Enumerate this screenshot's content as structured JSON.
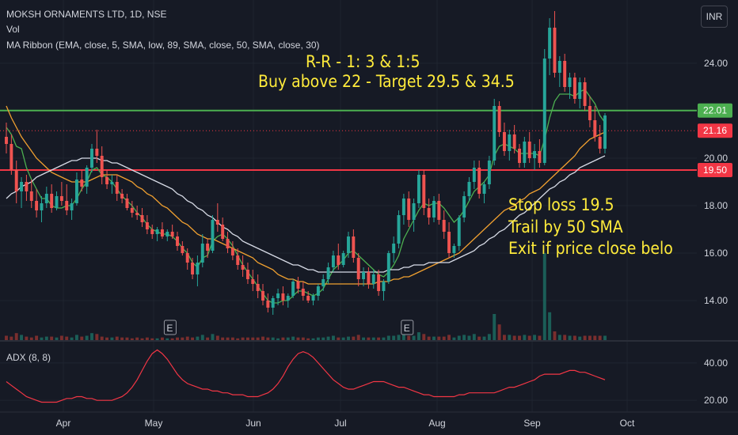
{
  "header": {
    "symbol_line": "MOKSH ORNAMENTS LTD, 1D, NSE",
    "vol_label": "Vol",
    "ma_ribbon_label": "MA Ribbon (EMA, close, 5, SMA, low, 89, SMA, close, 50, SMA, close, 30)",
    "currency": "INR"
  },
  "annotations": [
    "R-R - 1: 3 & 1:5",
    "Buy above 22 - Target 29.5 & 34.5",
    "Stop loss 19.5",
    "Trail by 50 SMA",
    "Exit if price close belo"
  ],
  "adx_label": "ADX (8, 8)",
  "earnings_marker": "E",
  "colors": {
    "background": "#161a25",
    "up": "#26a69a",
    "down": "#ef5350",
    "ema5": "#4caf50",
    "sma30": "#f0a030",
    "sma50": "#d7dbe6",
    "resistance_line": "#4caf50",
    "support_line": "#f23645",
    "annotation_text": "#ffeb3b",
    "adx_line": "#f23645"
  },
  "chart_data": {
    "type": "candlestick",
    "ylim": [
      12.8,
      26.6
    ],
    "y_ticks": [
      "24.00",
      "22.00",
      "20.00",
      "18.00",
      "16.00",
      "14.00"
    ],
    "price_labels": [
      {
        "value": 22.01,
        "text": "22.01",
        "color": "#4caf50"
      },
      {
        "value": 21.16,
        "text": "21.16",
        "color": "#f23645"
      },
      {
        "value": 19.5,
        "text": "19.50",
        "color": "#f23645"
      }
    ],
    "horizontal_lines": [
      {
        "value": 22.01,
        "color": "#4caf50",
        "style": "solid"
      },
      {
        "value": 21.16,
        "color": "#f23645",
        "style": "dotted"
      },
      {
        "value": 19.5,
        "color": "#f23645",
        "style": "solid"
      }
    ],
    "x_labels": [
      "Apr",
      "May",
      "Jun",
      "Jul",
      "Aug",
      "Sep",
      "Oct"
    ],
    "earnings_positions": [
      0.236,
      0.632
    ],
    "candles": [
      [
        20.9,
        21.5,
        20.2,
        20.6
      ],
      [
        20.6,
        21.0,
        19.3,
        19.5
      ],
      [
        19.5,
        19.9,
        18.1,
        18.6
      ],
      [
        18.6,
        19.2,
        17.9,
        19.0
      ],
      [
        19.0,
        19.3,
        18.2,
        18.6
      ],
      [
        18.6,
        19.1,
        17.9,
        18.2
      ],
      [
        18.2,
        18.7,
        17.5,
        17.8
      ],
      [
        17.8,
        18.4,
        17.3,
        18.1
      ],
      [
        18.1,
        18.8,
        17.9,
        18.5
      ],
      [
        18.5,
        18.9,
        17.7,
        17.9
      ],
      [
        17.9,
        18.6,
        17.8,
        18.4
      ],
      [
        18.4,
        19.0,
        18.0,
        18.2
      ],
      [
        18.2,
        18.9,
        17.6,
        17.8
      ],
      [
        17.8,
        18.3,
        17.4,
        18.1
      ],
      [
        18.1,
        19.4,
        18.0,
        19.1
      ],
      [
        19.1,
        19.5,
        18.6,
        18.8
      ],
      [
        18.8,
        19.7,
        18.5,
        19.6
      ],
      [
        19.6,
        20.6,
        19.4,
        20.4
      ],
      [
        20.4,
        21.2,
        19.8,
        20.1
      ],
      [
        20.1,
        20.5,
        18.9,
        19.2
      ],
      [
        19.2,
        19.5,
        18.7,
        18.9
      ],
      [
        18.9,
        19.3,
        18.5,
        19.0
      ],
      [
        19.0,
        19.3,
        18.2,
        18.5
      ],
      [
        18.5,
        18.7,
        18.1,
        18.3
      ],
      [
        18.3,
        18.5,
        17.8,
        17.9
      ],
      [
        17.9,
        18.2,
        17.5,
        17.7
      ],
      [
        17.7,
        18.0,
        17.4,
        17.6
      ],
      [
        17.6,
        17.9,
        17.1,
        17.3
      ],
      [
        17.3,
        17.6,
        16.8,
        17.0
      ],
      [
        17.0,
        17.2,
        16.6,
        16.8
      ],
      [
        16.8,
        17.1,
        16.5,
        17.0
      ],
      [
        17.0,
        17.3,
        16.6,
        16.7
      ],
      [
        16.7,
        17.0,
        16.5,
        16.9
      ],
      [
        16.9,
        17.2,
        16.6,
        16.7
      ],
      [
        16.7,
        16.9,
        16.1,
        16.3
      ],
      [
        16.3,
        16.5,
        15.9,
        16.0
      ],
      [
        16.0,
        16.2,
        15.3,
        15.6
      ],
      [
        15.6,
        15.8,
        14.9,
        15.1
      ],
      [
        15.1,
        15.9,
        14.6,
        15.6
      ],
      [
        15.6,
        16.8,
        15.4,
        16.4
      ],
      [
        16.4,
        16.6,
        15.8,
        16.1
      ],
      [
        16.1,
        17.6,
        16.0,
        17.4
      ],
      [
        17.4,
        18.1,
        16.9,
        17.2
      ],
      [
        17.2,
        17.5,
        16.5,
        16.6
      ],
      [
        16.6,
        16.9,
        16.0,
        16.2
      ],
      [
        16.2,
        16.5,
        15.7,
        15.9
      ],
      [
        15.9,
        16.2,
        15.3,
        15.5
      ],
      [
        15.5,
        15.9,
        15.0,
        15.3
      ],
      [
        15.3,
        15.6,
        14.7,
        14.9
      ],
      [
        14.9,
        15.3,
        14.4,
        14.7
      ],
      [
        14.7,
        15.1,
        14.1,
        14.4
      ],
      [
        14.4,
        14.7,
        13.8,
        14.0
      ],
      [
        14.0,
        14.3,
        13.5,
        13.7
      ],
      [
        13.7,
        14.2,
        13.4,
        14.1
      ],
      [
        14.1,
        14.5,
        13.8,
        14.3
      ],
      [
        14.3,
        14.6,
        13.8,
        14.0
      ],
      [
        14.0,
        14.3,
        13.7,
        14.2
      ],
      [
        14.2,
        14.9,
        14.1,
        14.8
      ],
      [
        14.8,
        15.0,
        14.3,
        14.5
      ],
      [
        14.5,
        14.8,
        14.0,
        14.2
      ],
      [
        14.2,
        14.4,
        13.9,
        14.0
      ],
      [
        14.0,
        14.3,
        13.8,
        14.2
      ],
      [
        14.2,
        14.7,
        14.0,
        14.6
      ],
      [
        14.6,
        15.1,
        14.4,
        14.9
      ],
      [
        14.9,
        15.6,
        14.7,
        15.4
      ],
      [
        15.4,
        16.1,
        15.2,
        15.9
      ],
      [
        15.9,
        16.4,
        15.3,
        15.5
      ],
      [
        15.5,
        16.1,
        15.4,
        16.0
      ],
      [
        16.0,
        16.9,
        15.8,
        16.7
      ],
      [
        16.7,
        17.0,
        15.6,
        15.8
      ],
      [
        15.8,
        16.0,
        14.6,
        14.9
      ],
      [
        14.9,
        15.4,
        14.6,
        15.2
      ],
      [
        15.2,
        15.4,
        14.5,
        14.7
      ],
      [
        14.7,
        15.3,
        14.5,
        15.1
      ],
      [
        15.1,
        15.3,
        14.2,
        14.4
      ],
      [
        14.4,
        14.9,
        14.0,
        14.8
      ],
      [
        14.8,
        16.1,
        14.7,
        16.0
      ],
      [
        16.0,
        16.7,
        15.6,
        16.4
      ],
      [
        16.4,
        17.8,
        16.2,
        17.6
      ],
      [
        17.6,
        18.5,
        17.2,
        18.3
      ],
      [
        18.3,
        18.6,
        17.1,
        17.4
      ],
      [
        17.4,
        18.3,
        16.9,
        18.1
      ],
      [
        18.1,
        19.5,
        17.9,
        19.3
      ],
      [
        19.3,
        19.5,
        17.6,
        17.9
      ],
      [
        17.9,
        18.3,
        17.2,
        17.5
      ],
      [
        17.5,
        18.4,
        17.3,
        18.2
      ],
      [
        18.2,
        18.5,
        17.2,
        17.4
      ],
      [
        17.4,
        17.8,
        16.6,
        16.9
      ],
      [
        16.9,
        17.3,
        15.8,
        16.0
      ],
      [
        16.0,
        16.4,
        15.8,
        16.3
      ],
      [
        16.3,
        17.6,
        16.1,
        17.5
      ],
      [
        17.5,
        18.6,
        17.3,
        18.4
      ],
      [
        18.4,
        19.2,
        18.2,
        19.0
      ],
      [
        19.0,
        19.9,
        18.7,
        19.6
      ],
      [
        19.6,
        19.9,
        18.3,
        18.5
      ],
      [
        18.5,
        19.0,
        18.1,
        18.9
      ],
      [
        18.9,
        20.1,
        18.7,
        19.9
      ],
      [
        19.9,
        22.5,
        19.7,
        22.2
      ],
      [
        22.2,
        22.4,
        20.9,
        21.1
      ],
      [
        21.1,
        21.5,
        20.1,
        20.3
      ],
      [
        20.3,
        21.2,
        19.9,
        21.0
      ],
      [
        21.0,
        21.4,
        20.2,
        20.4
      ],
      [
        20.4,
        20.6,
        19.6,
        19.8
      ],
      [
        19.8,
        20.9,
        19.6,
        20.7
      ],
      [
        20.7,
        21.1,
        19.8,
        20.0
      ],
      [
        20.0,
        20.6,
        19.5,
        20.3
      ],
      [
        20.3,
        20.8,
        19.6,
        19.8
      ],
      [
        19.8,
        24.6,
        19.7,
        24.2
      ],
      [
        24.2,
        25.9,
        23.5,
        25.5
      ],
      [
        25.5,
        26.2,
        23.4,
        23.6
      ],
      [
        23.6,
        24.3,
        23.0,
        24.1
      ],
      [
        24.1,
        24.4,
        22.8,
        23.0
      ],
      [
        23.0,
        23.6,
        22.5,
        23.4
      ],
      [
        23.4,
        23.6,
        22.3,
        22.5
      ],
      [
        22.5,
        23.4,
        22.1,
        23.2
      ],
      [
        23.2,
        23.4,
        22.0,
        22.2
      ],
      [
        22.2,
        22.6,
        21.3,
        21.6
      ],
      [
        21.6,
        22.2,
        20.7,
        20.9
      ],
      [
        20.9,
        21.4,
        20.2,
        20.4
      ],
      [
        20.4,
        21.9,
        20.2,
        21.8
      ]
    ],
    "series": [
      {
        "name": "EMA (close, 5)",
        "values": [
          21.3,
          21.0,
          20.5,
          20.4,
          19.6,
          19.1,
          18.7,
          18.3,
          18.3,
          18.0,
          17.9,
          17.9,
          18.0,
          18.0,
          18.3,
          18.7,
          19.0,
          19.5,
          19.6,
          19.3,
          19.2,
          19.0,
          18.7,
          18.4,
          18.2,
          18.0,
          17.7,
          17.5,
          17.2,
          17.0,
          16.9,
          16.8,
          16.8,
          16.7,
          16.5,
          16.2,
          16.0,
          15.6,
          15.4,
          15.8,
          15.9,
          16.5,
          16.7,
          16.8,
          16.6,
          16.3,
          15.9,
          15.5,
          15.2,
          14.9,
          14.6,
          14.3,
          14.0,
          13.9,
          13.9,
          14.0,
          14.0,
          14.2,
          14.4,
          14.4,
          14.3,
          14.2,
          14.3,
          14.5,
          14.9,
          15.3,
          15.5,
          15.7,
          16.0,
          16.1,
          15.9,
          15.7,
          15.5,
          15.3,
          15.1,
          15.0,
          15.2,
          15.5,
          15.9,
          16.6,
          17.0,
          17.4,
          17.8,
          18.1,
          18.0,
          18.1,
          18.1,
          17.9,
          17.6,
          17.3,
          17.5,
          17.8,
          18.2,
          18.6,
          18.8,
          19.0,
          19.3,
          20.1,
          20.5,
          20.6,
          20.5,
          20.4,
          20.2,
          20.2,
          20.2,
          20.2,
          20.1,
          20.8,
          21.7,
          22.4,
          22.7,
          22.7,
          22.7,
          22.6,
          22.8,
          22.9,
          22.6,
          22.3,
          21.8,
          21.5
        ]
      },
      {
        "name": "SMA (close, 30)",
        "values": [
          22.2,
          21.7,
          21.3,
          20.9,
          20.6,
          20.3,
          20.0,
          19.8,
          19.6,
          19.4,
          19.3,
          19.2,
          19.1,
          19.0,
          19.0,
          19.0,
          19.0,
          19.1,
          19.2,
          19.3,
          19.3,
          19.3,
          19.3,
          19.2,
          19.1,
          19.0,
          18.8,
          18.7,
          18.5,
          18.4,
          18.2,
          18.0,
          17.9,
          17.7,
          17.5,
          17.3,
          17.2,
          17.0,
          16.8,
          16.7,
          16.6,
          16.6,
          16.5,
          16.4,
          16.3,
          16.2,
          16.1,
          16.0,
          15.9,
          15.8,
          15.6,
          15.5,
          15.4,
          15.3,
          15.1,
          15.0,
          14.9,
          14.9,
          14.8,
          14.8,
          14.7,
          14.7,
          14.7,
          14.7,
          14.7,
          14.7,
          14.7,
          14.7,
          14.7,
          14.7,
          14.7,
          14.7,
          14.7,
          14.7,
          14.8,
          14.8,
          14.8,
          14.9,
          14.9,
          15.0,
          15.0,
          15.1,
          15.2,
          15.3,
          15.4,
          15.5,
          15.6,
          15.7,
          15.8,
          15.9,
          16.0,
          16.2,
          16.4,
          16.6,
          16.8,
          17.0,
          17.2,
          17.4,
          17.6,
          17.8,
          17.9,
          18.0,
          18.2,
          18.3,
          18.5,
          18.6,
          18.7,
          18.9,
          19.1,
          19.3,
          19.5,
          19.7,
          19.9,
          20.1,
          20.4,
          20.6,
          20.8,
          20.9,
          21.0,
          21.1
        ]
      },
      {
        "name": "SMA (close, 50)",
        "values": [
          18.3,
          18.5,
          18.6,
          18.8,
          18.9,
          19.0,
          19.2,
          19.3,
          19.4,
          19.5,
          19.6,
          19.7,
          19.8,
          19.9,
          19.9,
          20.0,
          20.0,
          20.0,
          20.0,
          19.9,
          19.9,
          19.8,
          19.8,
          19.7,
          19.6,
          19.5,
          19.4,
          19.3,
          19.2,
          19.1,
          19.0,
          18.9,
          18.8,
          18.7,
          18.5,
          18.4,
          18.2,
          18.1,
          17.9,
          17.8,
          17.6,
          17.5,
          17.3,
          17.1,
          17.0,
          16.8,
          16.7,
          16.5,
          16.4,
          16.3,
          16.2,
          16.1,
          16.0,
          15.9,
          15.8,
          15.7,
          15.6,
          15.5,
          15.5,
          15.4,
          15.3,
          15.3,
          15.2,
          15.2,
          15.2,
          15.2,
          15.2,
          15.2,
          15.2,
          15.2,
          15.2,
          15.2,
          15.2,
          15.2,
          15.2,
          15.2,
          15.3,
          15.3,
          15.3,
          15.4,
          15.4,
          15.5,
          15.5,
          15.5,
          15.6,
          15.6,
          15.6,
          15.6,
          15.6,
          15.7,
          15.8,
          15.9,
          16.0,
          16.1,
          16.3,
          16.4,
          16.6,
          16.7,
          16.9,
          17.0,
          17.2,
          17.4,
          17.6,
          17.7,
          17.9,
          18.1,
          18.3,
          18.5,
          18.7,
          18.8,
          19.0,
          19.1,
          19.3,
          19.4,
          19.6,
          19.7,
          19.8,
          19.9,
          20.0,
          20.1
        ]
      }
    ],
    "volume_relative": [
      0.05,
      0.04,
      0.08,
      0.06,
      0.04,
      0.03,
      0.05,
      0.03,
      0.04,
      0.04,
      0.03,
      0.05,
      0.04,
      0.03,
      0.06,
      0.04,
      0.05,
      0.08,
      0.07,
      0.04,
      0.03,
      0.03,
      0.04,
      0.03,
      0.03,
      0.02,
      0.03,
      0.02,
      0.03,
      0.02,
      0.02,
      0.03,
      0.02,
      0.02,
      0.03,
      0.03,
      0.04,
      0.03,
      0.04,
      0.06,
      0.03,
      0.07,
      0.05,
      0.03,
      0.03,
      0.03,
      0.02,
      0.03,
      0.03,
      0.03,
      0.03,
      0.04,
      0.03,
      0.03,
      0.02,
      0.03,
      0.03,
      0.04,
      0.03,
      0.03,
      0.02,
      0.02,
      0.03,
      0.03,
      0.04,
      0.05,
      0.03,
      0.03,
      0.04,
      0.04,
      0.06,
      0.03,
      0.03,
      0.03,
      0.03,
      0.03,
      0.05,
      0.05,
      0.06,
      0.08,
      0.05,
      0.05,
      0.09,
      0.07,
      0.04,
      0.04,
      0.04,
      0.04,
      0.06,
      0.03,
      0.05,
      0.06,
      0.05,
      0.07,
      0.04,
      0.04,
      0.07,
      0.3,
      0.18,
      0.06,
      0.06,
      0.05,
      0.05,
      0.06,
      0.05,
      0.06,
      0.05,
      1.0,
      0.32,
      0.1,
      0.06,
      0.06,
      0.05,
      0.05,
      0.04,
      0.05,
      0.05,
      0.05,
      0.05,
      0.05
    ],
    "adx": {
      "ylim": [
        15,
        48
      ],
      "y_ticks": [
        "40.00",
        "20.00"
      ],
      "values": [
        30,
        28,
        26,
        24,
        22,
        21,
        20,
        19,
        19,
        19,
        19,
        20,
        21,
        21,
        22,
        22,
        21,
        21,
        20,
        20,
        20,
        20,
        21,
        22,
        24,
        27,
        31,
        36,
        41,
        45,
        47,
        45,
        42,
        38,
        34,
        31,
        29,
        28,
        27,
        26,
        26,
        25,
        25,
        24,
        24,
        23,
        23,
        23,
        22,
        22,
        22,
        23,
        24,
        26,
        29,
        33,
        38,
        42,
        45,
        46,
        45,
        43,
        40,
        37,
        34,
        31,
        29,
        27,
        26,
        26,
        27,
        28,
        29,
        30,
        30,
        30,
        29,
        28,
        27,
        27,
        26,
        25,
        24,
        23,
        23,
        22,
        22,
        22,
        22,
        22,
        23,
        23,
        24,
        24,
        24,
        24,
        24,
        24,
        25,
        26,
        27,
        27,
        28,
        29,
        30,
        31,
        33,
        34,
        34,
        34,
        34,
        35,
        36,
        36,
        35,
        35,
        34,
        33,
        32,
        31
      ]
    }
  }
}
